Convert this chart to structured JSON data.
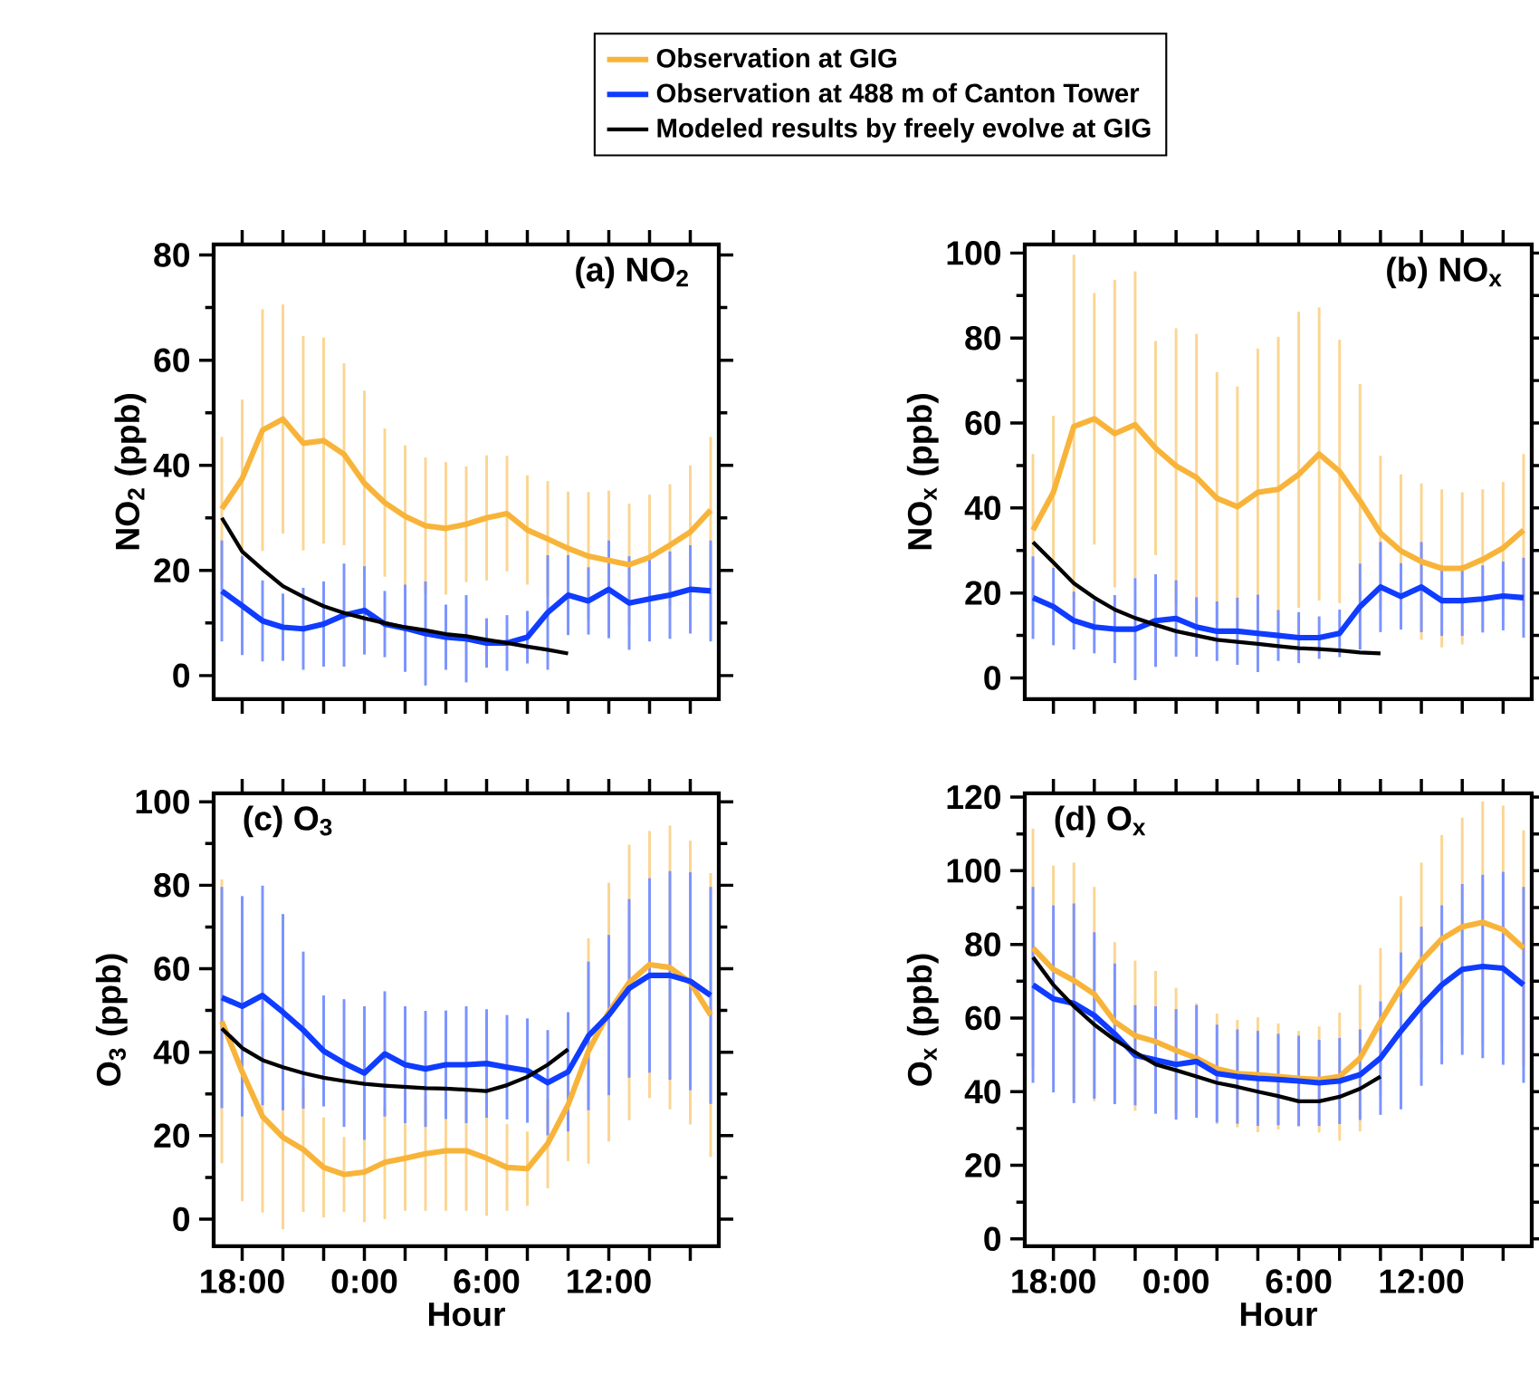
{
  "chart_data": [
    {
      "type": "line",
      "title": "(a) NO$_{2}$",
      "ylabel": "NO$_{2}$ (ppb)",
      "legend": "top",
      "tick_labels": "y",
      "x": [
        "2000-01-01T17:00",
        "2000-01-01T18:00",
        "2000-01-01T19:00",
        "2000-01-01T20:00",
        "2000-01-01T21:00",
        "2000-01-01T22:00",
        "2000-01-01T23:00",
        "2000-01-02T00:00",
        "2000-01-02T01:00",
        "2000-01-02T02:00",
        "2000-01-02T03:00",
        "2000-01-02T04:00",
        "2000-01-02T05:00",
        "2000-01-02T06:00",
        "2000-01-02T07:00",
        "2000-01-02T08:00",
        "2000-01-02T09:00",
        "2000-01-02T10:00",
        "2000-01-02T11:00",
        "2000-01-02T12:00",
        "2000-01-02T13:00",
        "2000-01-02T14:00",
        "2000-01-02T15:00",
        "2000-01-02T16:00",
        "2000-01-02T17:00"
      ],
      "xlim": [
        "2000-01-01T16:36",
        "2000-01-02T17:24"
      ],
      "ylim": [
        -4.5,
        82
      ],
      "xticks": [
        {
          "value": "2000-01-01T18:00",
          "label": null
        },
        {
          "value": "2000-01-01T20:00",
          "label": null
        },
        {
          "value": "2000-01-01T22:00",
          "label": null
        },
        {
          "value": "2000-01-02T00:00",
          "label": null
        },
        {
          "value": "2000-01-02T02:00",
          "label": null
        },
        {
          "value": "2000-01-02T04:00",
          "label": null
        },
        {
          "value": "2000-01-02T06:00",
          "label": null
        },
        {
          "value": "2000-01-02T08:00",
          "label": null
        },
        {
          "value": "2000-01-02T10:00",
          "label": null
        },
        {
          "value": "2000-01-02T12:00",
          "label": null
        },
        {
          "value": "2000-01-02T14:00",
          "label": null
        },
        {
          "value": "2000-01-02T16:00",
          "label": null
        }
      ],
      "yticks": [
        0,
        20,
        40,
        60,
        80
      ],
      "series": [
        {
          "name": "Observation at GIG",
          "color": "#f8b43a",
          "values": [
            31.7,
            37.5,
            46.7,
            48.8,
            44.2,
            44.7,
            42.1,
            36.6,
            32.9,
            30.3,
            28.5,
            28,
            28.8,
            30,
            30.8,
            27.7,
            26,
            24.2,
            22.7,
            21.9,
            21.1,
            22.5,
            24.8,
            27.3,
            31.5
          ],
          "errors": [
            13.7,
            15,
            23,
            21.8,
            20.4,
            19.6,
            17.3,
            17.6,
            14.1,
            13.5,
            13,
            12.6,
            11,
            11.9,
            11,
            10.4,
            11,
            10.8,
            12.2,
            13.3,
            11.6,
            11.9,
            11.6,
            12.7,
            13.9
          ]
        },
        {
          "name": "Observation at 488 m of Canton Tower",
          "color": "#0f3cff",
          "values": [
            16.1,
            13.3,
            10.4,
            9.2,
            8.9,
            9.8,
            11.5,
            12.4,
            9.8,
            9,
            8,
            7.3,
            7,
            6.2,
            6.2,
            7.3,
            12,
            15.3,
            14.2,
            16.4,
            13.8,
            14.6,
            15.3,
            16.4,
            16.1
          ],
          "errors": [
            9.6,
            9.4,
            7.7,
            6.4,
            7.8,
            8.1,
            9.8,
            8.4,
            6.3,
            8.3,
            9.9,
            6.2,
            8.3,
            4.7,
            5.3,
            5,
            10.9,
            7.6,
            6.4,
            9.3,
            8.9,
            8.1,
            8.3,
            8.4,
            9.6
          ]
        },
        {
          "name": "Modeled results by freely evolve at GIG",
          "color": "#000000",
          "x": [
            "2000-01-01T17:00",
            "2000-01-01T18:00",
            "2000-01-01T19:00",
            "2000-01-01T20:00",
            "2000-01-01T21:00",
            "2000-01-01T22:00",
            "2000-01-01T23:00",
            "2000-01-02T00:00",
            "2000-01-02T01:00",
            "2000-01-02T02:00",
            "2000-01-02T03:00",
            "2000-01-02T04:00",
            "2000-01-02T05:00",
            "2000-01-02T06:00",
            "2000-01-02T07:00",
            "2000-01-02T08:00",
            "2000-01-02T09:00",
            "2000-01-02T10:00"
          ],
          "values": [
            30,
            23.6,
            20.2,
            17,
            15,
            13.2,
            11.9,
            10.9,
            10,
            9.2,
            8.6,
            7.9,
            7.5,
            6.8,
            6.2,
            5.5,
            4.9,
            4.2
          ]
        }
      ]
    },
    {
      "type": "line",
      "title": "(b) NO$_{x}$",
      "ylabel": "NO$_{x}$ (ppb)",
      "tick_labels": "y",
      "x": [
        "2000-01-01T17:00",
        "2000-01-01T18:00",
        "2000-01-01T19:00",
        "2000-01-01T20:00",
        "2000-01-01T21:00",
        "2000-01-01T22:00",
        "2000-01-01T23:00",
        "2000-01-02T00:00",
        "2000-01-02T01:00",
        "2000-01-02T02:00",
        "2000-01-02T03:00",
        "2000-01-02T04:00",
        "2000-01-02T05:00",
        "2000-01-02T06:00",
        "2000-01-02T07:00",
        "2000-01-02T08:00",
        "2000-01-02T09:00",
        "2000-01-02T10:00",
        "2000-01-02T11:00",
        "2000-01-02T12:00",
        "2000-01-02T13:00",
        "2000-01-02T14:00",
        "2000-01-02T15:00",
        "2000-01-02T16:00",
        "2000-01-02T17:00"
      ],
      "xlim": [
        "2000-01-01T16:36",
        "2000-01-02T17:24"
      ],
      "ylim": [
        -5,
        102
      ],
      "xticks": [
        {
          "value": "2000-01-01T18:00",
          "label": null
        },
        {
          "value": "2000-01-01T20:00",
          "label": null
        },
        {
          "value": "2000-01-01T22:00",
          "label": null
        },
        {
          "value": "2000-01-02T00:00",
          "label": null
        },
        {
          "value": "2000-01-02T02:00",
          "label": null
        },
        {
          "value": "2000-01-02T04:00",
          "label": null
        },
        {
          "value": "2000-01-02T06:00",
          "label": null
        },
        {
          "value": "2000-01-02T08:00",
          "label": null
        },
        {
          "value": "2000-01-02T10:00",
          "label": null
        },
        {
          "value": "2000-01-02T12:00",
          "label": null
        },
        {
          "value": "2000-01-02T14:00",
          "label": null
        },
        {
          "value": "2000-01-02T16:00",
          "label": null
        }
      ],
      "yticks": [
        0,
        20,
        40,
        60,
        80,
        100
      ],
      "series": [
        {
          "color": "#f8b43a",
          "values": [
            34.8,
            43.7,
            59.2,
            61,
            57.5,
            59.6,
            54.1,
            49.9,
            47.2,
            42.3,
            40.3,
            43.7,
            44.4,
            47.9,
            52.7,
            48.6,
            41.7,
            34.1,
            29.9,
            27.4,
            25.8,
            25.8,
            27.9,
            30.6,
            34.8
          ],
          "errors": [
            17.9,
            18,
            40.4,
            29.6,
            36.2,
            36.1,
            25.2,
            32.4,
            33.8,
            29.7,
            28.3,
            33.8,
            35.9,
            [
              16.5,
              86.2
            ],
            34.5,
            31,
            27.5,
            18.2,
            18,
            18.4,
            18.6,
            17.9,
            16.5,
            15.5,
            17.9
          ]
        },
        {
          "color": "#0f3cff",
          "values": [
            18.9,
            16.8,
            13.5,
            12,
            11.5,
            11.5,
            13.5,
            14,
            12,
            11,
            11,
            10.5,
            10,
            9.5,
            9.5,
            10.5,
            16.8,
            21.4,
            19.2,
            21.4,
            18.2,
            18.2,
            18.6,
            19.3,
            18.9
          ],
          "errors": [
            9.7,
            9.1,
            6.8,
            6.2,
            8,
            12,
            10.9,
            9,
            7,
            7,
            7.9,
            9.1,
            6,
            6,
            5,
            5.6,
            10.1,
            10.6,
            7.8,
            10.6,
            8.3,
            8.3,
            7.9,
            8.1,
            9.4
          ]
        },
        {
          "color": "#000000",
          "x": [
            "2000-01-01T17:00",
            "2000-01-01T18:00",
            "2000-01-01T19:00",
            "2000-01-01T20:00",
            "2000-01-01T21:00",
            "2000-01-01T22:00",
            "2000-01-01T23:00",
            "2000-01-02T00:00",
            "2000-01-02T01:00",
            "2000-01-02T02:00",
            "2000-01-02T03:00",
            "2000-01-02T04:00",
            "2000-01-02T05:00",
            "2000-01-02T06:00",
            "2000-01-02T07:00",
            "2000-01-02T08:00",
            "2000-01-02T09:00",
            "2000-01-02T10:00"
          ],
          "values": [
            32,
            27.2,
            22.3,
            18.9,
            16.1,
            14.1,
            12.5,
            11,
            10,
            9,
            8.5,
            8,
            7.5,
            7,
            6.8,
            6.5,
            6,
            5.8
          ]
        }
      ]
    },
    {
      "type": "line",
      "title": "(c) O$_{3}$",
      "ylabel": "O$_{3}$ (ppb)",
      "xlabel": "Hour",
      "x": [
        "2000-01-01T17:00",
        "2000-01-01T18:00",
        "2000-01-01T19:00",
        "2000-01-01T20:00",
        "2000-01-01T21:00",
        "2000-01-01T22:00",
        "2000-01-01T23:00",
        "2000-01-02T00:00",
        "2000-01-02T01:00",
        "2000-01-02T02:00",
        "2000-01-02T03:00",
        "2000-01-02T04:00",
        "2000-01-02T05:00",
        "2000-01-02T06:00",
        "2000-01-02T07:00",
        "2000-01-02T08:00",
        "2000-01-02T09:00",
        "2000-01-02T10:00",
        "2000-01-02T11:00",
        "2000-01-02T12:00",
        "2000-01-02T13:00",
        "2000-01-02T14:00",
        "2000-01-02T15:00",
        "2000-01-02T16:00",
        "2000-01-02T17:00"
      ],
      "xlim": [
        "2000-01-01T16:36",
        "2000-01-02T17:24"
      ],
      "ylim": [
        -6.5,
        102
      ],
      "xticks": [
        {
          "value": "2000-01-01T18:00",
          "label": "18:00"
        },
        {
          "value": "2000-01-01T20:00",
          "label": null
        },
        {
          "value": "2000-01-01T22:00",
          "label": null
        },
        {
          "value": "2000-01-02T00:00",
          "label": "0:00"
        },
        {
          "value": "2000-01-02T02:00",
          "label": null
        },
        {
          "value": "2000-01-02T04:00",
          "label": null
        },
        {
          "value": "2000-01-02T06:00",
          "label": "6:00"
        },
        {
          "value": "2000-01-02T08:00",
          "label": null
        },
        {
          "value": "2000-01-02T10:00",
          "label": null
        },
        {
          "value": "2000-01-02T12:00",
          "label": "12:00"
        },
        {
          "value": "2000-01-02T14:00",
          "label": null
        },
        {
          "value": "2000-01-02T16:00",
          "label": null
        }
      ],
      "yticks": [
        0,
        20,
        40,
        60,
        80,
        100
      ],
      "series": [
        {
          "color": "#f8b43a",
          "values": [
            47.4,
            35.3,
            24.6,
            19.6,
            16.7,
            12.4,
            10.7,
            11.3,
            13.6,
            14.6,
            15.7,
            16.4,
            16.4,
            14.6,
            12.4,
            12.1,
            18.1,
            27.4,
            40.3,
            49.6,
            56.7,
            61,
            60.3,
            56.7,
            48.9
          ],
          "errors": [
            34,
            31,
            23,
            22,
            15,
            12,
            9,
            12,
            13.6,
            12.6,
            13.7,
            14.4,
            14.4,
            13.8,
            10.4,
            8.9,
            10.7,
            13.5,
            27,
            31,
            33,
            32,
            34,
            34,
            34
          ]
        },
        {
          "color": "#0f3cff",
          "values": [
            53.1,
            51,
            53.6,
            49.6,
            45.3,
            40.3,
            37.4,
            35,
            39.6,
            37,
            36,
            37,
            37,
            37.3,
            36.4,
            35.6,
            32.7,
            35.3,
            43.9,
            48.9,
            55.3,
            58.4,
            58.4,
            57,
            53.6
          ],
          "errors": [
            26.5,
            26.4,
            26.3,
            23.5,
            18.8,
            13.3,
            15.3,
            16,
            15,
            14,
            13.9,
            13,
            14,
            13,
            12.5,
            12.5,
            12.6,
            14.3,
            17.8,
            19.2,
            21.4,
            23.3,
            25,
            26.1,
            26
          ]
        },
        {
          "color": "#000000",
          "x": [
            "2000-01-01T17:00",
            "2000-01-01T18:00",
            "2000-01-01T19:00",
            "2000-01-01T20:00",
            "2000-01-01T21:00",
            "2000-01-01T22:00",
            "2000-01-01T23:00",
            "2000-01-02T00:00",
            "2000-01-02T01:00",
            "2000-01-02T02:00",
            "2000-01-02T03:00",
            "2000-01-02T04:00",
            "2000-01-02T05:00",
            "2000-01-02T06:00",
            "2000-01-02T07:00",
            "2000-01-02T08:00",
            "2000-01-02T09:00",
            "2000-01-02T10:00"
          ],
          "values": [
            45.7,
            41,
            38.1,
            36.4,
            35,
            33.9,
            33.1,
            32.4,
            32,
            31.7,
            31.4,
            31.3,
            31,
            30.7,
            32.1,
            34.1,
            37,
            40.7
          ]
        }
      ]
    },
    {
      "type": "line",
      "title": "(d) O$_{x}$",
      "ylabel": "O$_{x}$ (ppb)",
      "xlabel": "Hour",
      "x": [
        "2000-01-01T17:00",
        "2000-01-01T18:00",
        "2000-01-01T19:00",
        "2000-01-01T20:00",
        "2000-01-01T21:00",
        "2000-01-01T22:00",
        "2000-01-01T23:00",
        "2000-01-02T00:00",
        "2000-01-02T01:00",
        "2000-01-02T02:00",
        "2000-01-02T03:00",
        "2000-01-02T04:00",
        "2000-01-02T05:00",
        "2000-01-02T06:00",
        "2000-01-02T07:00",
        "2000-01-02T08:00",
        "2000-01-02T09:00",
        "2000-01-02T10:00",
        "2000-01-02T11:00",
        "2000-01-02T12:00",
        "2000-01-02T13:00",
        "2000-01-02T14:00",
        "2000-01-02T15:00",
        "2000-01-02T16:00",
        "2000-01-02T17:00"
      ],
      "xlim": [
        "2000-01-01T16:36",
        "2000-01-02T17:24"
      ],
      "ylim": [
        -2,
        121
      ],
      "xticks": [
        {
          "value": "2000-01-01T18:00",
          "label": "18:00"
        },
        {
          "value": "2000-01-01T20:00",
          "label": null
        },
        {
          "value": "2000-01-01T22:00",
          "label": null
        },
        {
          "value": "2000-01-02T00:00",
          "label": "0:00"
        },
        {
          "value": "2000-01-02T02:00",
          "label": null
        },
        {
          "value": "2000-01-02T04:00",
          "label": null
        },
        {
          "value": "2000-01-02T06:00",
          "label": "6:00"
        },
        {
          "value": "2000-01-02T08:00",
          "label": null
        },
        {
          "value": "2000-01-02T10:00",
          "label": null
        },
        {
          "value": "2000-01-02T12:00",
          "label": "12:00"
        },
        {
          "value": "2000-01-02T14:00",
          "label": null
        },
        {
          "value": "2000-01-02T16:00",
          "label": null
        }
      ],
      "yticks": [
        0,
        20,
        40,
        60,
        80,
        100,
        120
      ],
      "series": [
        {
          "color": "#f8b43a",
          "values": [
            79,
            73.2,
            70.2,
            66.5,
            59,
            55.2,
            53.6,
            51.2,
            49.1,
            46.2,
            44.9,
            44.6,
            44.1,
            43.6,
            43.3,
            44.1,
            49.1,
            59,
            68.2,
            75.6,
            81.5,
            84.8,
            86,
            84,
            79
          ],
          "errors": [
            32.4,
            28.2,
            32,
            29.1,
            21.6,
            20.4,
            19.2,
            17,
            14.9,
            15,
            14.6,
            15.6,
            14.4,
            12.9,
            14.4,
            17.4,
            19.9,
            20,
            24.9,
            26.6,
            28.2,
            29.6,
            32.8,
            33.7,
            32
          ]
        },
        {
          "color": "#0f3cff",
          "values": [
            69,
            65.2,
            64,
            60.7,
            55.7,
            49.9,
            48.6,
            47.4,
            48.2,
            44.9,
            44.1,
            43.6,
            43.3,
            42.9,
            42.4,
            42.9,
            44.6,
            49.1,
            56.5,
            63.2,
            69,
            73.2,
            74,
            73.5,
            69
          ],
          "errors": [
            26.6,
            25.4,
            27.1,
            22.6,
            19.1,
            13.6,
            14.6,
            15,
            15.3,
            13.3,
            12.8,
            12.9,
            12.4,
            12.3,
            11.7,
            11.7,
            12.3,
            15.4,
            21.3,
            21.6,
            21.6,
            23.2,
            24.9,
            26.2,
            26.6
          ]
        },
        {
          "color": "#000000",
          "x": [
            "2000-01-01T17:00",
            "2000-01-01T18:00",
            "2000-01-01T19:00",
            "2000-01-01T20:00",
            "2000-01-01T21:00",
            "2000-01-01T22:00",
            "2000-01-01T23:00",
            "2000-01-02T00:00",
            "2000-01-02T01:00",
            "2000-01-02T02:00",
            "2000-01-02T03:00",
            "2000-01-02T04:00",
            "2000-01-02T05:00",
            "2000-01-02T06:00",
            "2000-01-02T07:00",
            "2000-01-02T08:00",
            "2000-01-02T09:00",
            "2000-01-02T10:00"
          ],
          "values": [
            76.5,
            69,
            63.2,
            58.2,
            54.1,
            50.7,
            47.4,
            45.8,
            44.1,
            42.4,
            41.3,
            40,
            38.8,
            37.4,
            37.4,
            38.6,
            40.8,
            44.1
          ]
        }
      ]
    }
  ]
}
